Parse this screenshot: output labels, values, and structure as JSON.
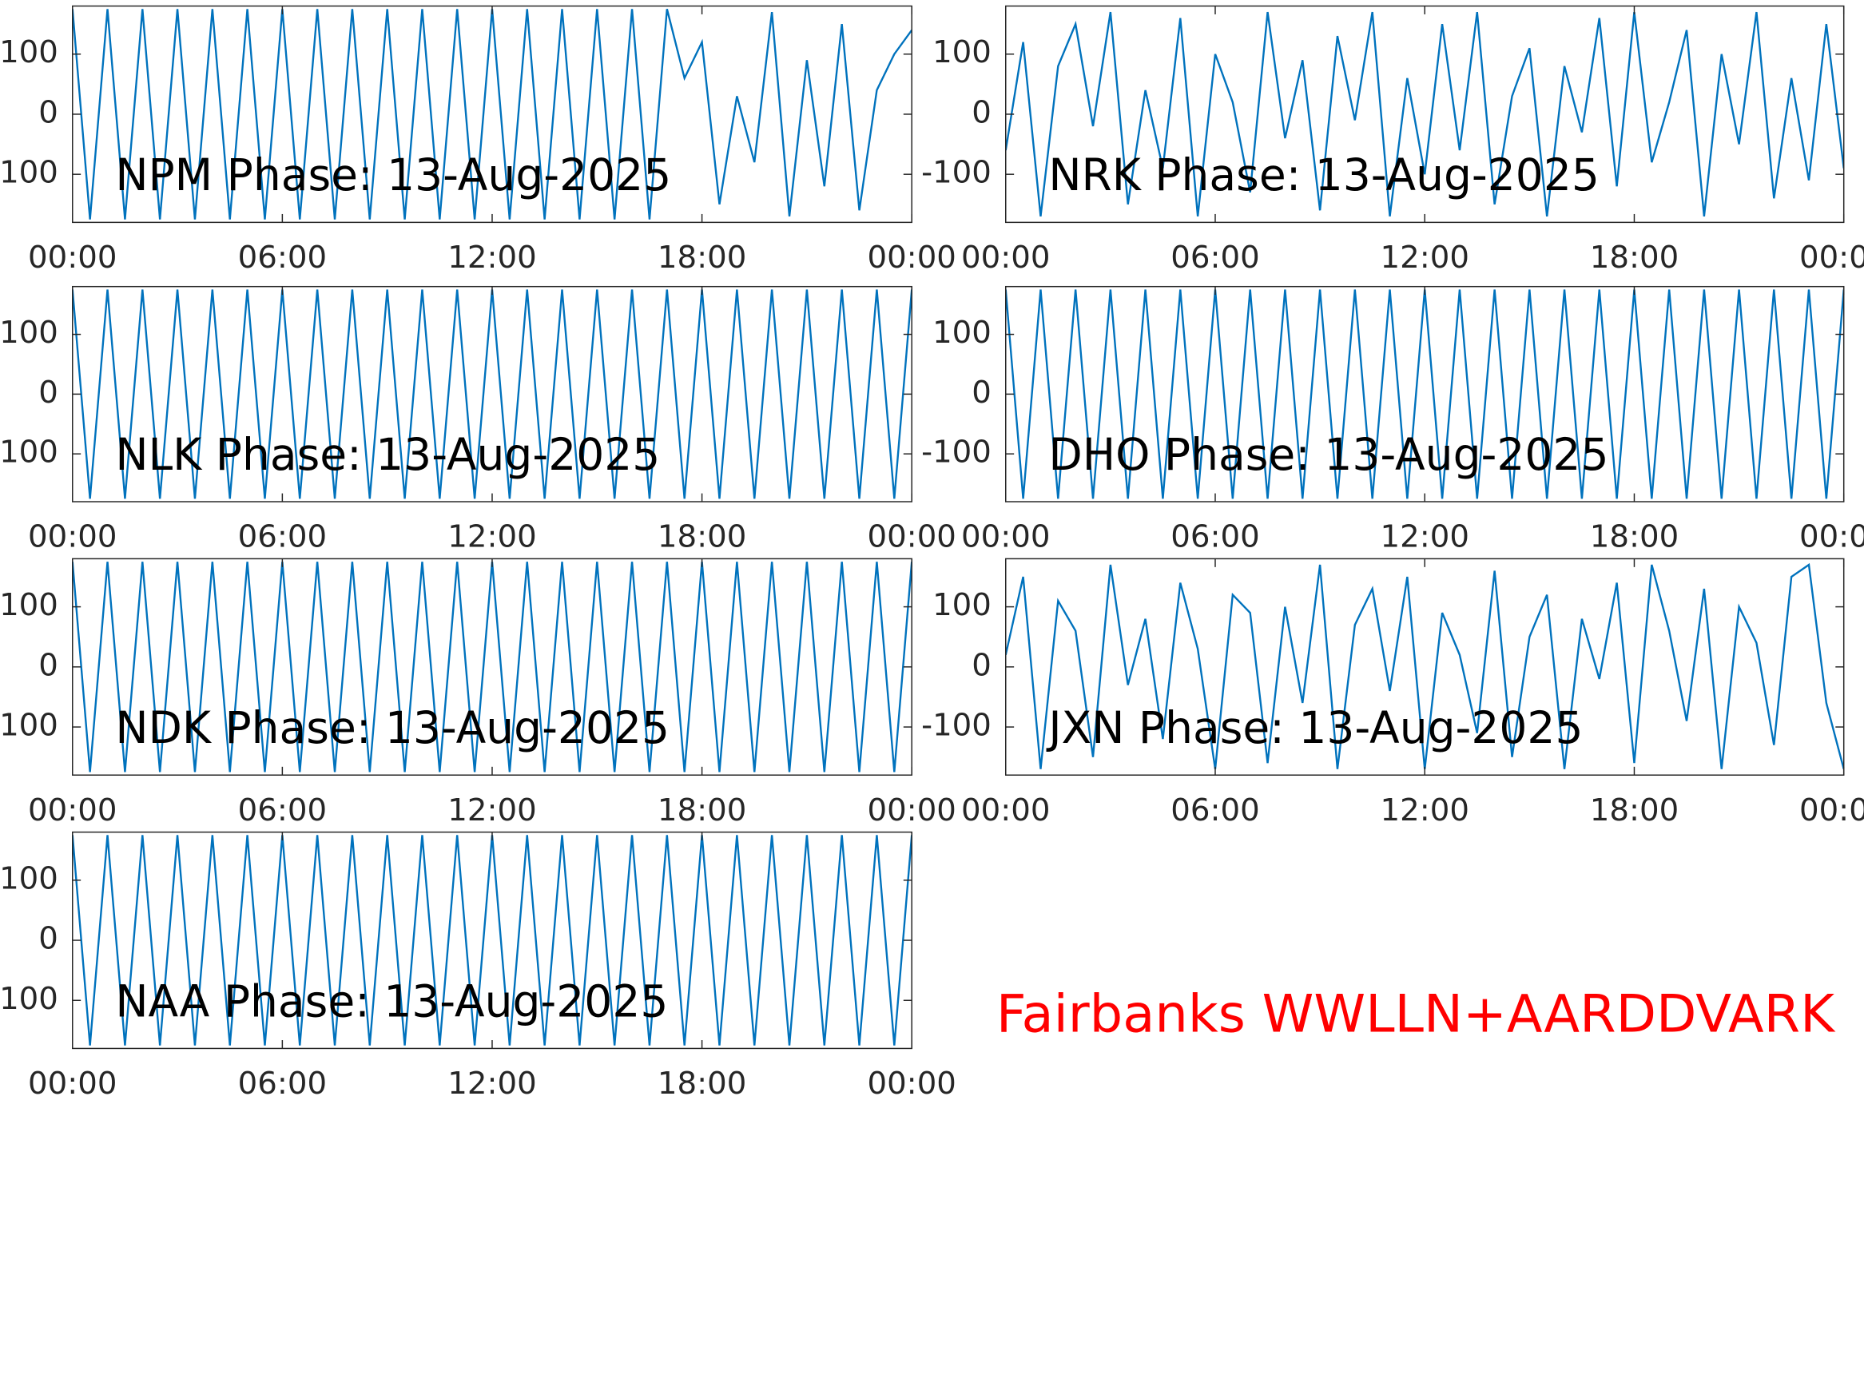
{
  "chart_data": [
    {
      "type": "line",
      "title": "NPM Phase: 13-Aug-2025",
      "x": [
        0,
        0.5,
        1,
        1.5,
        2,
        2.5,
        3,
        3.5,
        4,
        4.5,
        5,
        5.5,
        6,
        6.5,
        7,
        7.5,
        8,
        8.5,
        9,
        9.5,
        10,
        10.5,
        11,
        11.5,
        12,
        12.5,
        13,
        13.5,
        14,
        14.5,
        15,
        15.5,
        16,
        16.5,
        17,
        17.5,
        18,
        18.5,
        19,
        19.5,
        20,
        20.5,
        21,
        21.5,
        22,
        22.5,
        23,
        23.5,
        24
      ],
      "series": [
        {
          "color": "#0072bd",
          "values": [
            175,
            -175,
            175,
            -175,
            175,
            -175,
            175,
            -175,
            175,
            -175,
            175,
            -175,
            175,
            -175,
            175,
            -175,
            175,
            -175,
            175,
            -175,
            175,
            -175,
            175,
            -175,
            175,
            -175,
            175,
            -175,
            175,
            -175,
            175,
            -175,
            175,
            -175,
            175,
            60,
            120,
            -150,
            30,
            -80,
            170,
            -170,
            90,
            -120,
            150,
            -160,
            40,
            100,
            140
          ]
        }
      ],
      "xlim": [
        0,
        24
      ],
      "ylim": [
        -180,
        180
      ],
      "xticks": [
        {
          "value": 0,
          "label": "00:00"
        },
        {
          "value": 6,
          "label": "06:00"
        },
        {
          "value": 12,
          "label": "12:00"
        },
        {
          "value": 18,
          "label": "18:00"
        },
        {
          "value": 24,
          "label": "00:00"
        }
      ],
      "yticks": [
        -100,
        0,
        100
      ]
    },
    {
      "type": "line",
      "title": "NRK Phase: 13-Aug-2025",
      "x": [
        0,
        0.5,
        1,
        1.5,
        2,
        2.5,
        3,
        3.5,
        4,
        4.5,
        5,
        5.5,
        6,
        6.5,
        7,
        7.5,
        8,
        8.5,
        9,
        9.5,
        10,
        10.5,
        11,
        11.5,
        12,
        12.5,
        13,
        13.5,
        14,
        14.5,
        15,
        15.5,
        16,
        16.5,
        17,
        17.5,
        18,
        18.5,
        19,
        19.5,
        20,
        20.5,
        21,
        21.5,
        22,
        22.5,
        23,
        23.5,
        24
      ],
      "series": [
        {
          "color": "#0072bd",
          "values": [
            -60,
            120,
            -170,
            80,
            150,
            -20,
            170,
            -150,
            40,
            -90,
            160,
            -170,
            100,
            20,
            -130,
            170,
            -40,
            90,
            -160,
            130,
            -10,
            170,
            -170,
            60,
            -100,
            150,
            -60,
            170,
            -150,
            30,
            110,
            -170,
            80,
            -30,
            160,
            -120,
            170,
            -80,
            20,
            140,
            -170,
            100,
            -50,
            170,
            -140,
            60,
            -110,
            150,
            -90
          ]
        }
      ],
      "xlim": [
        0,
        24
      ],
      "ylim": [
        -180,
        180
      ],
      "xticks": [
        {
          "value": 0,
          "label": "00:00"
        },
        {
          "value": 6,
          "label": "06:00"
        },
        {
          "value": 12,
          "label": "12:00"
        },
        {
          "value": 18,
          "label": "18:00"
        },
        {
          "value": 24,
          "label": "00:00"
        }
      ],
      "yticks": [
        -100,
        0,
        100
      ]
    },
    {
      "type": "line",
      "title": "NLK Phase: 13-Aug-2025",
      "x": [
        0,
        0.5,
        1,
        1.5,
        2,
        2.5,
        3,
        3.5,
        4,
        4.5,
        5,
        5.5,
        6,
        6.5,
        7,
        7.5,
        8,
        8.5,
        9,
        9.5,
        10,
        10.5,
        11,
        11.5,
        12,
        12.5,
        13,
        13.5,
        14,
        14.5,
        15,
        15.5,
        16,
        16.5,
        17,
        17.5,
        18,
        18.5,
        19,
        19.5,
        20,
        20.5,
        21,
        21.5,
        22,
        22.5,
        23,
        23.5,
        24
      ],
      "series": [
        {
          "color": "#0072bd",
          "values": [
            175,
            -175,
            175,
            -175,
            175,
            -175,
            175,
            -175,
            175,
            -175,
            175,
            -175,
            175,
            -175,
            175,
            -175,
            175,
            -175,
            175,
            -175,
            175,
            -175,
            175,
            -175,
            175,
            -175,
            175,
            -175,
            175,
            -175,
            175,
            -175,
            175,
            -175,
            175,
            -175,
            175,
            -175,
            175,
            -175,
            175,
            -175,
            175,
            -175,
            175,
            -175,
            175,
            -175,
            175
          ]
        }
      ],
      "xlim": [
        0,
        24
      ],
      "ylim": [
        -180,
        180
      ],
      "xticks": [
        {
          "value": 0,
          "label": "00:00"
        },
        {
          "value": 6,
          "label": "06:00"
        },
        {
          "value": 12,
          "label": "12:00"
        },
        {
          "value": 18,
          "label": "18:00"
        },
        {
          "value": 24,
          "label": "00:00"
        }
      ],
      "yticks": [
        -100,
        0,
        100
      ]
    },
    {
      "type": "line",
      "title": "DHO Phase: 13-Aug-2025",
      "x": [
        0,
        0.5,
        1,
        1.5,
        2,
        2.5,
        3,
        3.5,
        4,
        4.5,
        5,
        5.5,
        6,
        6.5,
        7,
        7.5,
        8,
        8.5,
        9,
        9.5,
        10,
        10.5,
        11,
        11.5,
        12,
        12.5,
        13,
        13.5,
        14,
        14.5,
        15,
        15.5,
        16,
        16.5,
        17,
        17.5,
        18,
        18.5,
        19,
        19.5,
        20,
        20.5,
        21,
        21.5,
        22,
        22.5,
        23,
        23.5,
        24
      ],
      "series": [
        {
          "color": "#0072bd",
          "values": [
            175,
            -175,
            175,
            -175,
            175,
            -175,
            175,
            -175,
            175,
            -175,
            175,
            -175,
            175,
            -175,
            175,
            -175,
            175,
            -175,
            175,
            -175,
            175,
            -175,
            175,
            -175,
            175,
            -175,
            175,
            -175,
            175,
            -175,
            175,
            -175,
            175,
            -175,
            175,
            -175,
            175,
            -175,
            175,
            -175,
            175,
            -175,
            175,
            -175,
            175,
            -175,
            175,
            -175,
            175
          ]
        }
      ],
      "xlim": [
        0,
        24
      ],
      "ylim": [
        -180,
        180
      ],
      "xticks": [
        {
          "value": 0,
          "label": "00:00"
        },
        {
          "value": 6,
          "label": "06:00"
        },
        {
          "value": 12,
          "label": "12:00"
        },
        {
          "value": 18,
          "label": "18:00"
        },
        {
          "value": 24,
          "label": "00:00"
        }
      ],
      "yticks": [
        -100,
        0,
        100
      ]
    },
    {
      "type": "line",
      "title": "NDK Phase: 13-Aug-2025",
      "x": [
        0,
        0.5,
        1,
        1.5,
        2,
        2.5,
        3,
        3.5,
        4,
        4.5,
        5,
        5.5,
        6,
        6.5,
        7,
        7.5,
        8,
        8.5,
        9,
        9.5,
        10,
        10.5,
        11,
        11.5,
        12,
        12.5,
        13,
        13.5,
        14,
        14.5,
        15,
        15.5,
        16,
        16.5,
        17,
        17.5,
        18,
        18.5,
        19,
        19.5,
        20,
        20.5,
        21,
        21.5,
        22,
        22.5,
        23,
        23.5,
        24
      ],
      "series": [
        {
          "color": "#0072bd",
          "values": [
            175,
            -175,
            175,
            -175,
            175,
            -175,
            175,
            -175,
            175,
            -175,
            175,
            -175,
            175,
            -175,
            175,
            -175,
            175,
            -175,
            175,
            -175,
            175,
            -175,
            175,
            -175,
            175,
            -175,
            175,
            -175,
            175,
            -175,
            175,
            -175,
            175,
            -175,
            175,
            -175,
            175,
            -175,
            175,
            -175,
            175,
            -175,
            175,
            -175,
            175,
            -175,
            175,
            -175,
            175
          ]
        }
      ],
      "xlim": [
        0,
        24
      ],
      "ylim": [
        -180,
        180
      ],
      "xticks": [
        {
          "value": 0,
          "label": "00:00"
        },
        {
          "value": 6,
          "label": "06:00"
        },
        {
          "value": 12,
          "label": "12:00"
        },
        {
          "value": 18,
          "label": "18:00"
        },
        {
          "value": 24,
          "label": "00:00"
        }
      ],
      "yticks": [
        -100,
        0,
        100
      ]
    },
    {
      "type": "line",
      "title": "JXN Phase: 13-Aug-2025",
      "x": [
        0,
        0.5,
        1,
        1.5,
        2,
        2.5,
        3,
        3.5,
        4,
        4.5,
        5,
        5.5,
        6,
        6.5,
        7,
        7.5,
        8,
        8.5,
        9,
        9.5,
        10,
        10.5,
        11,
        11.5,
        12,
        12.5,
        13,
        13.5,
        14,
        14.5,
        15,
        15.5,
        16,
        16.5,
        17,
        17.5,
        18,
        18.5,
        19,
        19.5,
        20,
        20.5,
        21,
        21.5,
        22,
        22.5,
        23,
        23.5,
        24
      ],
      "series": [
        {
          "color": "#0072bd",
          "values": [
            20,
            150,
            -170,
            110,
            60,
            -150,
            170,
            -30,
            80,
            -120,
            140,
            30,
            -170,
            120,
            90,
            -160,
            100,
            -60,
            170,
            -170,
            70,
            130,
            -40,
            150,
            -170,
            90,
            20,
            -110,
            160,
            -150,
            50,
            120,
            -170,
            80,
            -20,
            140,
            -160,
            170,
            60,
            -90,
            130,
            -170,
            100,
            40,
            -130,
            150,
            170,
            -60,
            -170
          ]
        }
      ],
      "xlim": [
        0,
        24
      ],
      "ylim": [
        -180,
        180
      ],
      "xticks": [
        {
          "value": 0,
          "label": "00:00"
        },
        {
          "value": 6,
          "label": "06:00"
        },
        {
          "value": 12,
          "label": "12:00"
        },
        {
          "value": 18,
          "label": "18:00"
        },
        {
          "value": 24,
          "label": "00:00"
        }
      ],
      "yticks": [
        -100,
        0,
        100
      ]
    },
    {
      "type": "line",
      "title": "NAA Phase: 13-Aug-2025",
      "x": [
        0,
        0.5,
        1,
        1.5,
        2,
        2.5,
        3,
        3.5,
        4,
        4.5,
        5,
        5.5,
        6,
        6.5,
        7,
        7.5,
        8,
        8.5,
        9,
        9.5,
        10,
        10.5,
        11,
        11.5,
        12,
        12.5,
        13,
        13.5,
        14,
        14.5,
        15,
        15.5,
        16,
        16.5,
        17,
        17.5,
        18,
        18.5,
        19,
        19.5,
        20,
        20.5,
        21,
        21.5,
        22,
        22.5,
        23,
        23.5,
        24
      ],
      "series": [
        {
          "color": "#0072bd",
          "values": [
            175,
            -175,
            175,
            -175,
            175,
            -175,
            175,
            -175,
            175,
            -175,
            175,
            -175,
            175,
            -175,
            175,
            -175,
            175,
            -175,
            175,
            -175,
            175,
            -175,
            175,
            -175,
            175,
            -175,
            175,
            -175,
            175,
            -175,
            175,
            -175,
            175,
            -175,
            175,
            -175,
            175,
            -175,
            175,
            -175,
            175,
            -175,
            175,
            -175,
            175,
            -175,
            175,
            -175,
            175
          ]
        }
      ],
      "xlim": [
        0,
        24
      ],
      "ylim": [
        -180,
        180
      ],
      "xticks": [
        {
          "value": 0,
          "label": "00:00"
        },
        {
          "value": 6,
          "label": "06:00"
        },
        {
          "value": 12,
          "label": "12:00"
        },
        {
          "value": 18,
          "label": "18:00"
        },
        {
          "value": 24,
          "label": "00:00"
        }
      ],
      "yticks": [
        -100,
        0,
        100
      ]
    }
  ],
  "annotation": "Fairbanks WWLLN+AARDDVARK"
}
